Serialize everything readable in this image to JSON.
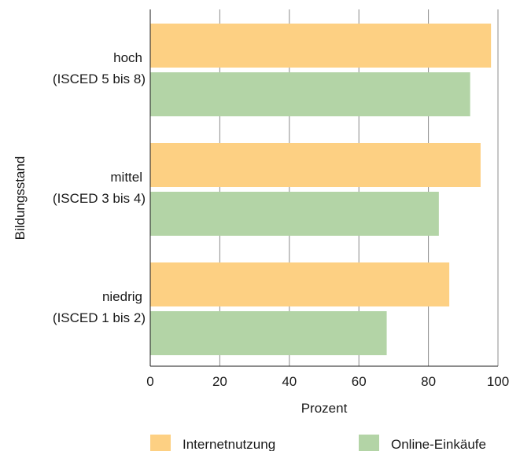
{
  "chart_data": {
    "type": "bar",
    "orientation": "horizontal",
    "title": "",
    "xlabel": "Prozent",
    "ylabel": "Bildungsstand",
    "xlim": [
      0,
      100
    ],
    "xticks": [
      0,
      20,
      40,
      60,
      80,
      100
    ],
    "grid": "vertical",
    "legend": "bottom",
    "categories": [
      {
        "line1": "hoch",
        "line2": "(ISCED 5 bis 8)"
      },
      {
        "line1": "mittel",
        "line2": "(ISCED 3 bis 4)"
      },
      {
        "line1": "niedrig",
        "line2": "(ISCED 1 bis 2)"
      }
    ],
    "series": [
      {
        "name": "Internetnutzung",
        "color": "#fdd083",
        "values": [
          98,
          95,
          86
        ]
      },
      {
        "name": "Online-Einkäufe",
        "color": "#b3d4a6",
        "values": [
          92,
          83,
          68
        ]
      }
    ]
  }
}
